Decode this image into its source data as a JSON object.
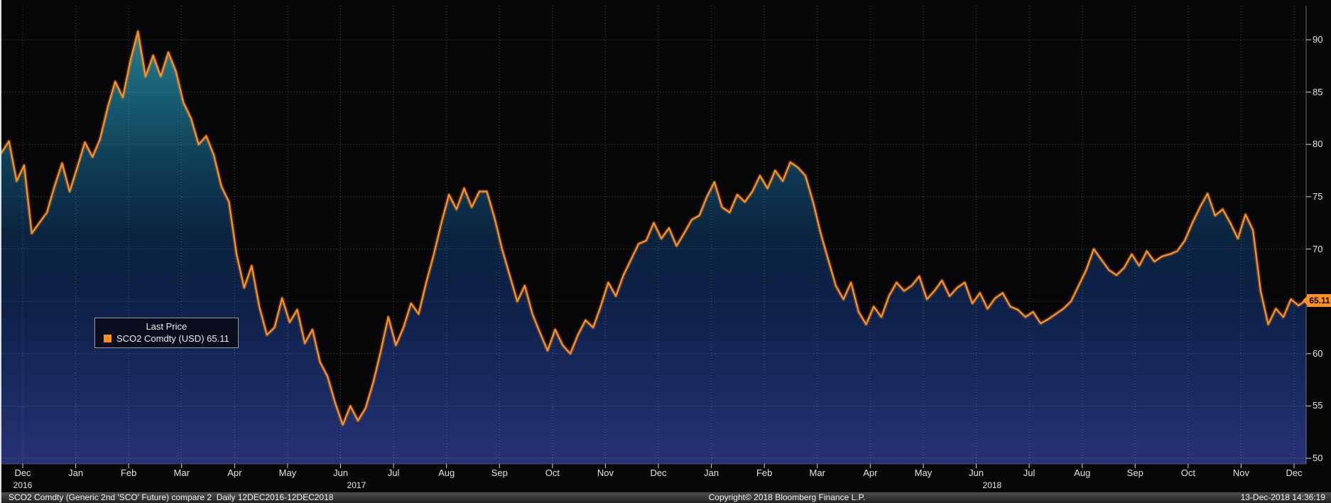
{
  "colors": {
    "line": "#ff8f1f",
    "line_glow": "rgba(255,143,31,0.25)",
    "badge_bg": "#ff8f1f",
    "badge_text": "#000000",
    "axis_text": "#e3e3e3"
  },
  "legend": {
    "title": "Last Price",
    "series_label": "SCO2 Comdty (USD) 65.11"
  },
  "last_price_badge": "65.11",
  "footer": {
    "left": "SCO2 Comdty (Generic 2nd 'SCO' Future) compare 2  Daily 12DEC2016-12DEC2018",
    "center": "Copyright© 2018 Bloomberg Finance L.P.",
    "right": "13-Dec-2018 14:36:19"
  },
  "chart_data": {
    "type": "area",
    "title": "SCO2 Comdty (Generic 2nd 'SCO' Future) — Last Price",
    "x_range": "12DEC2016-12DEC2018",
    "x_tick_labels": [
      "Dec",
      "Jan",
      "Feb",
      "Mar",
      "Apr",
      "May",
      "Jun",
      "Jul",
      "Aug",
      "Sep",
      "Oct",
      "Nov",
      "Dec",
      "Jan",
      "Feb",
      "Mar",
      "Apr",
      "May",
      "Jun",
      "Jul",
      "Aug",
      "Sep",
      "Oct",
      "Nov",
      "Dec"
    ],
    "year_labels": [
      {
        "label": "2016",
        "month_index": 0
      },
      {
        "label": "2017",
        "month_index": 6.3
      },
      {
        "label": "2018",
        "month_index": 18.3
      }
    ],
    "y_ticks": [
      50,
      55,
      60,
      65,
      70,
      75,
      80,
      85,
      90
    ],
    "ylim": [
      49.46,
      93.26
    ],
    "grid": "dotted",
    "legend_position": "inside-left",
    "last_value": 65.11,
    "fill_gradient": [
      {
        "offset": "0%",
        "color": "#35939b"
      },
      {
        "offset": "8%",
        "color": "#27798a"
      },
      {
        "offset": "20%",
        "color": "#175d72"
      },
      {
        "offset": "35%",
        "color": "#0f3c55"
      },
      {
        "offset": "50%",
        "color": "#0b2440"
      },
      {
        "offset": "65%",
        "color": "#0e2148"
      },
      {
        "offset": "82%",
        "color": "#172a5e"
      },
      {
        "offset": "100%",
        "color": "#283276"
      }
    ],
    "series": [
      {
        "name": "SCO2 Comdty (USD)",
        "values": [
          79.2,
          80.3,
          76.5,
          78.0,
          71.5,
          72.5,
          73.5,
          76.0,
          78.2,
          75.5,
          77.8,
          80.2,
          78.8,
          80.5,
          83.5,
          86.0,
          84.5,
          88.0,
          90.8,
          86.5,
          88.5,
          86.5,
          88.8,
          87.0,
          84.0,
          82.5,
          80.0,
          80.8,
          79.0,
          76.0,
          74.5,
          69.5,
          66.3,
          68.4,
          64.5,
          61.8,
          62.5,
          65.3,
          63.0,
          64.2,
          61.0,
          62.3,
          59.2,
          57.8,
          55.3,
          53.2,
          55.0,
          53.6,
          54.8,
          57.2,
          60.2,
          63.5,
          60.8,
          62.5,
          64.8,
          63.8,
          66.8,
          69.5,
          72.5,
          75.2,
          73.8,
          75.8,
          74.0,
          75.5,
          75.5,
          73.0,
          70.0,
          67.5,
          65.0,
          66.5,
          63.8,
          62.0,
          60.3,
          62.3,
          60.8,
          60.0,
          61.8,
          63.2,
          62.5,
          64.5,
          66.8,
          65.5,
          67.5,
          69.0,
          70.5,
          70.8,
          72.5,
          71.0,
          72.0,
          70.3,
          71.5,
          72.8,
          73.2,
          75.0,
          76.4,
          74.0,
          73.5,
          75.2,
          74.5,
          75.5,
          77.0,
          75.8,
          77.5,
          76.5,
          78.3,
          77.8,
          77.0,
          74.5,
          71.5,
          69.0,
          66.5,
          65.2,
          66.8,
          64.0,
          62.8,
          64.5,
          63.5,
          65.5,
          66.8,
          66.0,
          66.5,
          67.4,
          65.2,
          66.0,
          67.0,
          65.5,
          66.3,
          66.8,
          64.8,
          65.8,
          64.3,
          65.3,
          65.8,
          64.5,
          64.2,
          63.5,
          64.0,
          62.9,
          63.3,
          63.8,
          64.3,
          65.0,
          66.5,
          68.0,
          70.0,
          69.0,
          68.0,
          67.5,
          68.2,
          69.5,
          68.4,
          69.8,
          68.8,
          69.3,
          69.5,
          69.8,
          70.8,
          72.5,
          74.0,
          75.3,
          73.2,
          73.8,
          72.5,
          71.0,
          73.3,
          71.8,
          66.0,
          62.8,
          64.3,
          63.5,
          65.2,
          64.6,
          65.11
        ]
      }
    ]
  }
}
